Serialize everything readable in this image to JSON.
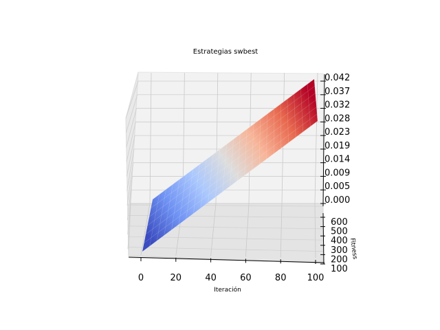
{
  "chart_data": {
    "type": "surface3d",
    "title": "Estrategias swbest",
    "xlabel": "Iteración",
    "ylabel": "Fitness",
    "zlabel": "",
    "xticks": [
      "0",
      "20",
      "40",
      "60",
      "80",
      "100"
    ],
    "yticks": [
      "100",
      "200",
      "300",
      "400",
      "500",
      "600"
    ],
    "zticks": [
      "0.000",
      "0.005",
      "0.009",
      "0.014",
      "0.019",
      "0.023",
      "0.028",
      "0.032",
      "0.037",
      "0.042"
    ],
    "xlim": [
      0,
      100
    ],
    "ylim": [
      100,
      600
    ],
    "zlim": [
      0.0,
      0.042
    ],
    "surface": {
      "description": "Planar surface increasing linearly with iteration",
      "x_range": [
        0,
        100
      ],
      "y_range": [
        100,
        600
      ],
      "z_at_x_min": 0.0,
      "z_at_x_max": 0.042,
      "colormap": "coolwarm",
      "colormap_stops": [
        "#3b4cc0",
        "#6f92f3",
        "#aac7fd",
        "#dddddd",
        "#f7b599",
        "#e8694f",
        "#b40426"
      ]
    },
    "grid": true
  }
}
